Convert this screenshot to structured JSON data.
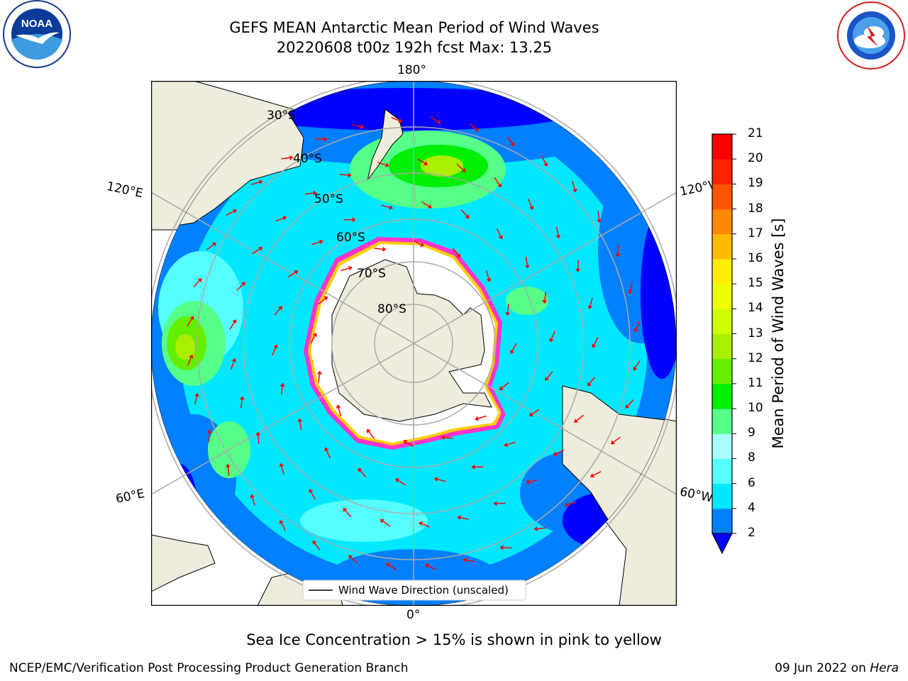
{
  "title": {
    "line1": "GEFS MEAN Antarctic Mean Period of Wind Waves",
    "line2": "20220608 t00z 192h fcst   Max: 13.25"
  },
  "logos": {
    "left": "noaa-logo",
    "right": "national-weather-service-logo",
    "left_text": "NOAA",
    "right_text": "NATIONAL WEATHER SERVICE"
  },
  "map": {
    "projection": "south-polar-stereographic",
    "longitude_labels": {
      "top": "180°",
      "bottom": "0°",
      "upper_left": "120°E",
      "lower_left": "60°E",
      "upper_right": "120°W",
      "lower_right": "60°W"
    },
    "latitude_labels": [
      "30°S",
      "40°S",
      "50°S",
      "60°S",
      "70°S",
      "80°S"
    ],
    "legend": "Wind Wave Direction (unscaled)",
    "arrow_color": "#ff0000",
    "land_color": "#eeecdc",
    "sea_ice_color": "#ffffff",
    "ice_edge_colors": [
      "#ff33cc",
      "#ffcc00"
    ]
  },
  "colorbar": {
    "label": "Mean Period of Wind Waves [s]",
    "ticks": [
      "2",
      "4",
      "6",
      "8",
      "9",
      "10",
      "11",
      "12",
      "13",
      "14",
      "15",
      "16",
      "17",
      "18",
      "19",
      "20",
      "21"
    ],
    "colors": [
      "#0000ff",
      "#0080ff",
      "#00e8ff",
      "#55ffff",
      "#aaffff",
      "#55ff88",
      "#00ee00",
      "#66ee00",
      "#aaee00",
      "#ccff00",
      "#eeff00",
      "#ffee00",
      "#ffbb00",
      "#ff8800",
      "#ff5500",
      "#ff2200",
      "#ff0000"
    ],
    "extend": "min"
  },
  "caption": "Sea Ice Concentration > 15% is shown in pink to yellow",
  "footer": {
    "left": "NCEP/EMC/Verification Post Processing Product Generation Branch",
    "right_date": "09 Jun 2022 on ",
    "right_host": "Hera"
  }
}
